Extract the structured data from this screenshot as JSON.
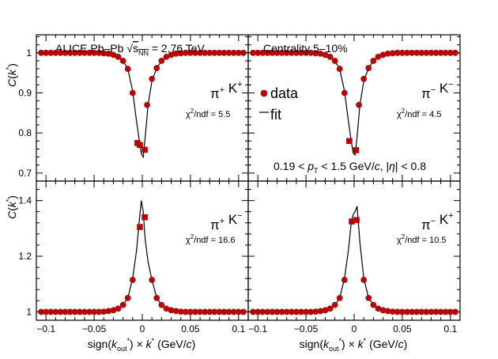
{
  "figure": {
    "ylabel": "C(k*)",
    "xlabel": "sign(k_out*) × k* (GeV/c)",
    "collab_label": "ALICE Pb–Pb √s_NN = 2.76 TeV",
    "centrality_label": "Centrality 5–10%",
    "kinematics_label": "0.19 < p_T < 1.5 GeV/c, |η| < 0.8",
    "legend_data": "data",
    "legend_fit": "fit",
    "colors": {
      "data": "#c00000",
      "fit": "#000000"
    }
  },
  "chart_data": [
    {
      "type": "scatter",
      "panel": "top-left",
      "pair_label": "π+ K+",
      "chi2_label": "χ2/ndf = 5.5",
      "xlim": [
        -0.11,
        0.11
      ],
      "ylim": [
        0.68,
        1.045
      ],
      "yticks": [
        0.7,
        0.8,
        0.9,
        1
      ],
      "xticks": [
        -0.1,
        -0.05,
        0,
        0.05,
        0.1
      ],
      "x": [
        -0.105,
        -0.1,
        -0.095,
        -0.09,
        -0.085,
        -0.08,
        -0.075,
        -0.07,
        -0.065,
        -0.06,
        -0.055,
        -0.05,
        -0.045,
        -0.04,
        -0.035,
        -0.03,
        -0.025,
        -0.02,
        -0.015,
        -0.01,
        -0.005,
        -0.0025,
        0.0025,
        0.005,
        0.01,
        0.015,
        0.02,
        0.025,
        0.03,
        0.035,
        0.04,
        0.045,
        0.05,
        0.055,
        0.06,
        0.065,
        0.07,
        0.075,
        0.08,
        0.085,
        0.09,
        0.095,
        0.1,
        0.105
      ],
      "y": [
        1,
        1,
        1,
        1,
        1,
        1,
        1,
        1,
        1,
        1,
        1,
        1,
        1,
        0.999,
        0.998,
        0.995,
        0.99,
        0.98,
        0.96,
        0.9,
        0.775,
        0.77,
        0.758,
        0.87,
        0.935,
        0.962,
        0.98,
        0.99,
        0.995,
        0.998,
        0.999,
        1,
        1,
        1,
        1,
        1,
        1,
        1,
        1,
        1,
        1,
        1,
        1,
        1
      ],
      "fit_x": [
        -0.11,
        -0.04,
        -0.03,
        -0.025,
        -0.02,
        -0.015,
        -0.01,
        -0.006,
        -0.003,
        -0.001,
        0.001,
        0.003,
        0.006,
        0.01,
        0.015,
        0.02,
        0.025,
        0.03,
        0.04,
        0.11
      ],
      "fit_y": [
        1,
        0.999,
        0.995,
        0.99,
        0.98,
        0.96,
        0.905,
        0.83,
        0.78,
        0.748,
        0.74,
        0.79,
        0.87,
        0.93,
        0.962,
        0.98,
        0.99,
        0.995,
        0.999,
        1
      ]
    },
    {
      "type": "scatter",
      "panel": "top-right",
      "pair_label": "π− K−",
      "chi2_label": "χ2/ndf = 4.5",
      "xlim": [
        -0.11,
        0.11
      ],
      "ylim": [
        0.68,
        1.045
      ],
      "yticks": [
        0.7,
        0.8,
        0.9,
        1
      ],
      "xticks": [
        -0.1,
        -0.05,
        0,
        0.05,
        0.1
      ],
      "x": [
        -0.105,
        -0.1,
        -0.095,
        -0.09,
        -0.085,
        -0.08,
        -0.075,
        -0.07,
        -0.065,
        -0.06,
        -0.055,
        -0.05,
        -0.045,
        -0.04,
        -0.035,
        -0.03,
        -0.025,
        -0.02,
        -0.015,
        -0.01,
        -0.005,
        0.002,
        0.005,
        0.01,
        0.015,
        0.02,
        0.025,
        0.03,
        0.035,
        0.04,
        0.045,
        0.05,
        0.055,
        0.06,
        0.065,
        0.07,
        0.075,
        0.08,
        0.085,
        0.09,
        0.095,
        0.1,
        0.105
      ],
      "y": [
        1,
        1,
        1,
        1,
        1,
        1,
        1,
        1,
        1,
        1,
        1,
        1,
        1,
        0.999,
        0.998,
        0.995,
        0.99,
        0.98,
        0.96,
        0.9,
        0.78,
        0.757,
        0.87,
        0.935,
        0.962,
        0.98,
        0.99,
        0.995,
        0.998,
        0.999,
        1,
        1,
        1,
        1,
        1,
        1,
        1,
        1,
        1,
        1,
        1,
        1,
        1
      ],
      "fit_x": [
        -0.11,
        -0.04,
        -0.03,
        -0.025,
        -0.02,
        -0.015,
        -0.01,
        -0.006,
        -0.003,
        -0.001,
        0.001,
        0.003,
        0.006,
        0.01,
        0.015,
        0.02,
        0.025,
        0.03,
        0.04,
        0.11
      ],
      "fit_y": [
        1,
        0.999,
        0.995,
        0.99,
        0.98,
        0.96,
        0.905,
        0.83,
        0.78,
        0.75,
        0.745,
        0.79,
        0.87,
        0.93,
        0.962,
        0.98,
        0.99,
        0.995,
        0.999,
        1
      ]
    },
    {
      "type": "scatter",
      "panel": "bottom-left",
      "pair_label": "π+ K−",
      "chi2_label": "χ2/ndf = 16.6",
      "xlim": [
        -0.11,
        0.11
      ],
      "ylim": [
        0.97,
        1.47
      ],
      "yticks": [
        1,
        1.2,
        1.4
      ],
      "xticks": [
        -0.1,
        -0.05,
        0,
        0.05,
        0.1
      ],
      "x": [
        -0.105,
        -0.1,
        -0.095,
        -0.09,
        -0.085,
        -0.08,
        -0.075,
        -0.07,
        -0.065,
        -0.06,
        -0.055,
        -0.05,
        -0.045,
        -0.04,
        -0.035,
        -0.03,
        -0.025,
        -0.02,
        -0.015,
        -0.01,
        -0.0025,
        0.0025,
        0.01,
        0.015,
        0.02,
        0.025,
        0.03,
        0.035,
        0.04,
        0.045,
        0.05,
        0.055,
        0.06,
        0.065,
        0.07,
        0.075,
        0.08,
        0.085,
        0.09,
        0.095,
        0.1,
        0.105
      ],
      "y": [
        1,
        1,
        1,
        1,
        1,
        1,
        1,
        1,
        1,
        1,
        1,
        1,
        1,
        1.001,
        1.003,
        1.006,
        1.012,
        1.025,
        1.05,
        1.115,
        1.305,
        1.34,
        1.115,
        1.05,
        1.025,
        1.012,
        1.006,
        1.003,
        1.001,
        1,
        1,
        1,
        1,
        1,
        1,
        1,
        1,
        1,
        1,
        1,
        1,
        1
      ],
      "fit_x": [
        -0.11,
        -0.04,
        -0.03,
        -0.025,
        -0.02,
        -0.015,
        -0.01,
        -0.006,
        -0.003,
        -0.001,
        0.001,
        0.003,
        0.006,
        0.01,
        0.015,
        0.02,
        0.025,
        0.03,
        0.04,
        0.11
      ],
      "fit_y": [
        1,
        1.001,
        1.006,
        1.012,
        1.025,
        1.05,
        1.12,
        1.22,
        1.33,
        1.4,
        1.36,
        1.26,
        1.18,
        1.115,
        1.05,
        1.025,
        1.012,
        1.006,
        1.001,
        1
      ]
    },
    {
      "type": "scatter",
      "panel": "bottom-right",
      "pair_label": "π− K+",
      "chi2_label": "χ2/ndf = 10.5",
      "xlim": [
        -0.11,
        0.11
      ],
      "ylim": [
        0.97,
        1.47
      ],
      "yticks": [
        1,
        1.2,
        1.4
      ],
      "xticks": [
        -0.1,
        -0.05,
        0,
        0.05,
        0.1
      ],
      "x": [
        -0.105,
        -0.1,
        -0.095,
        -0.09,
        -0.085,
        -0.08,
        -0.075,
        -0.07,
        -0.065,
        -0.06,
        -0.055,
        -0.05,
        -0.045,
        -0.04,
        -0.035,
        -0.03,
        -0.025,
        -0.02,
        -0.015,
        -0.01,
        -0.0025,
        0.0025,
        0.01,
        0.015,
        0.02,
        0.025,
        0.03,
        0.035,
        0.04,
        0.045,
        0.05,
        0.055,
        0.06,
        0.065,
        0.07,
        0.075,
        0.08,
        0.085,
        0.09,
        0.095,
        0.1,
        0.105
      ],
      "y": [
        1,
        1,
        1,
        1,
        1,
        1,
        1,
        1,
        1,
        1,
        1,
        1,
        1,
        1.001,
        1.003,
        1.006,
        1.012,
        1.025,
        1.05,
        1.115,
        1.325,
        1.33,
        1.115,
        1.05,
        1.025,
        1.012,
        1.006,
        1.003,
        1.001,
        1,
        1,
        1,
        1,
        1,
        1,
        1,
        1,
        1,
        1,
        1,
        1,
        1
      ],
      "fit_x": [
        -0.11,
        -0.04,
        -0.03,
        -0.025,
        -0.02,
        -0.015,
        -0.01,
        -0.006,
        -0.003,
        -0.001,
        0.001,
        0.003,
        0.006,
        0.01,
        0.015,
        0.02,
        0.025,
        0.03,
        0.04,
        0.11
      ],
      "fit_y": [
        1,
        1.001,
        1.006,
        1.012,
        1.025,
        1.05,
        1.12,
        1.22,
        1.32,
        1.35,
        1.36,
        1.38,
        1.25,
        1.12,
        1.05,
        1.025,
        1.012,
        1.006,
        1.001,
        1
      ]
    }
  ]
}
